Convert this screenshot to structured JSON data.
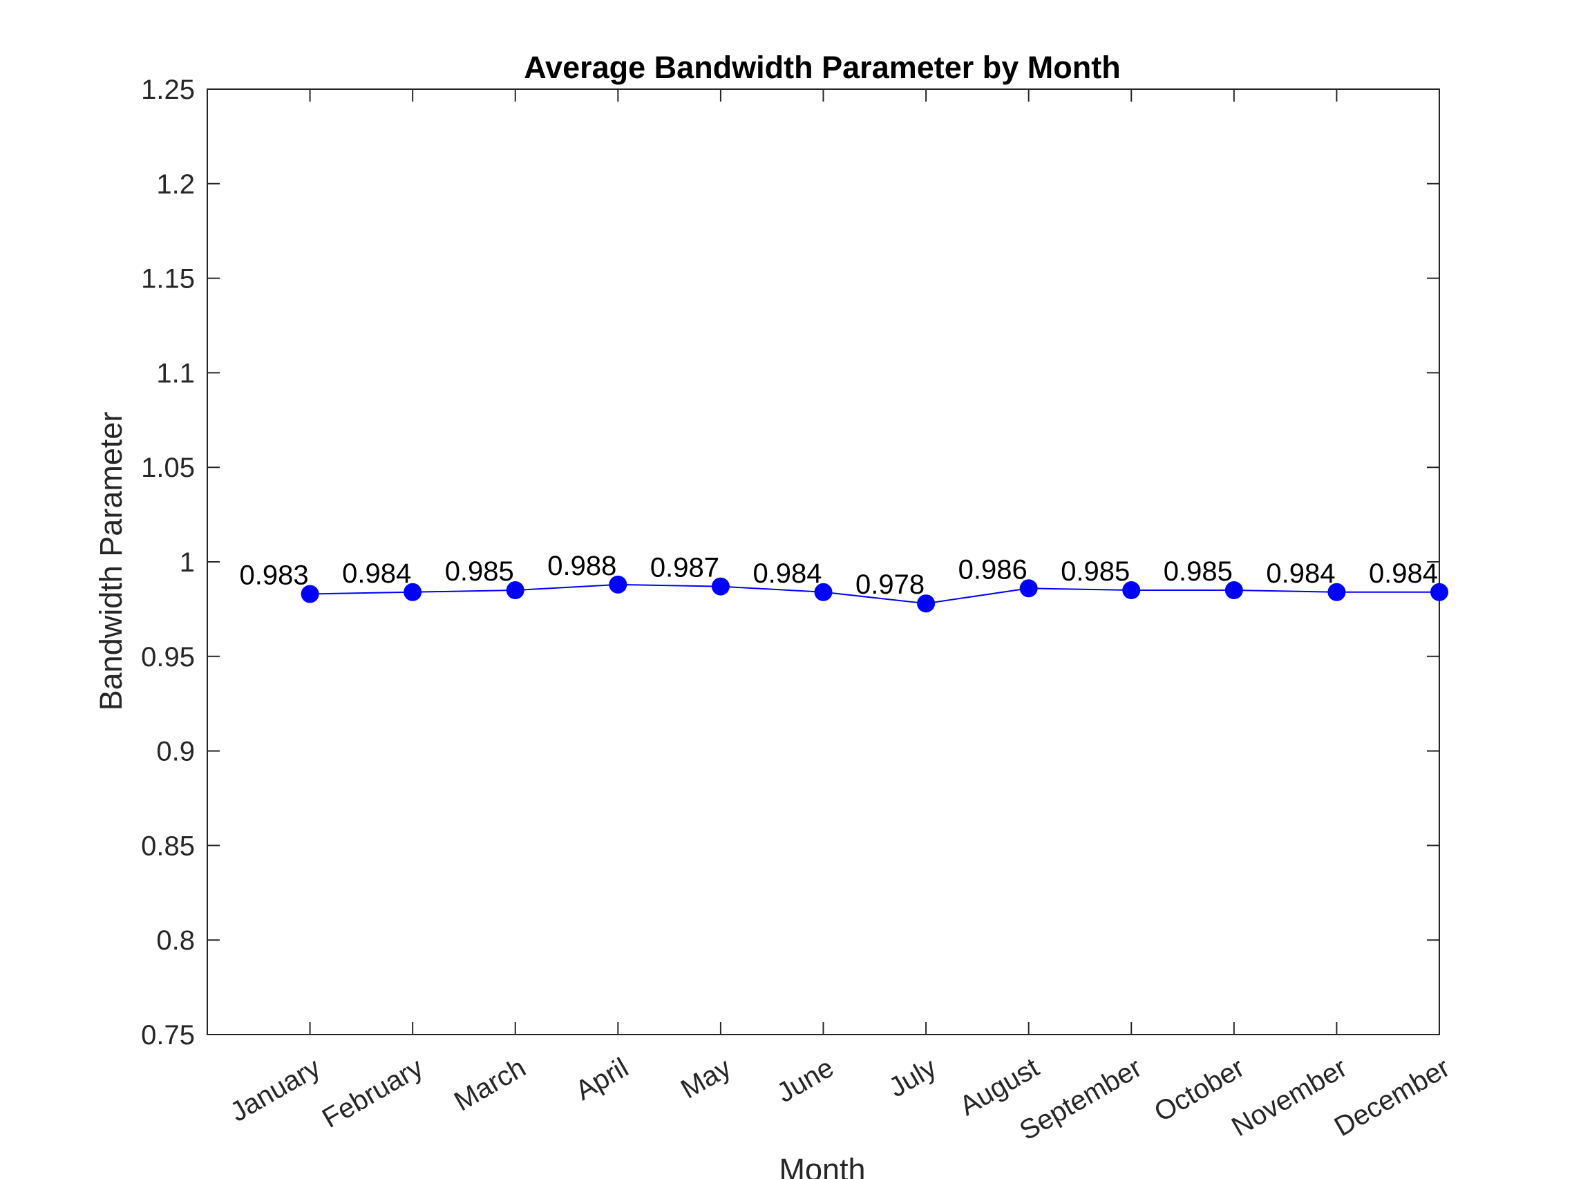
{
  "chart_data": {
    "type": "line",
    "title": "Average Bandwidth Parameter by Month",
    "xlabel": "Month",
    "ylabel": "Bandwidth Parameter",
    "categories": [
      "January",
      "February",
      "March",
      "April",
      "May",
      "June",
      "July",
      "August",
      "September",
      "October",
      "November",
      "December"
    ],
    "series": [
      {
        "values": [
          0.983,
          0.984,
          0.985,
          0.988,
          0.987,
          0.984,
          0.978,
          0.986,
          0.985,
          0.985,
          0.984,
          0.984
        ],
        "color": "#0000ff",
        "marker": "filled-circle",
        "data_labels": [
          "0.983",
          "0.984",
          "0.985",
          "0.988",
          "0.987",
          "0.984",
          "0.978",
          "0.986",
          "0.985",
          "0.985",
          "0.984",
          "0.984"
        ]
      }
    ],
    "ylim": [
      0.75,
      1.25
    ],
    "yticks": [
      "0.75",
      "0.8",
      "0.85",
      "0.9",
      "0.95",
      "1",
      "1.05",
      "1.1",
      "1.15",
      "1.2",
      "1.25"
    ],
    "grid": false,
    "legend": "none",
    "axis_color": "#262626"
  }
}
